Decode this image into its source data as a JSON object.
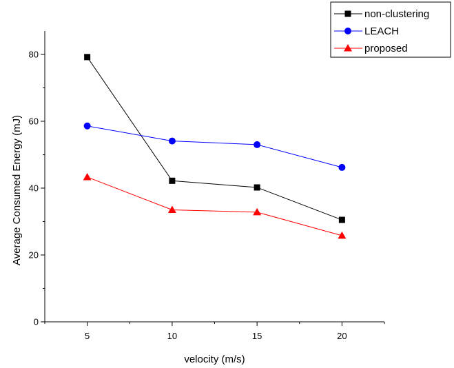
{
  "chart_data": {
    "type": "line",
    "xlabel": "velocity (m/s)",
    "ylabel": "Average Consumed Energy (mJ)",
    "x": [
      5,
      10,
      15,
      20
    ],
    "xlim": [
      2.5,
      22.5
    ],
    "ylim": [
      0,
      87
    ],
    "xticks": [
      5,
      10,
      15,
      20
    ],
    "yticks": [
      0,
      20,
      40,
      60,
      80
    ],
    "legend_position": "top-right",
    "grid": false,
    "series": [
      {
        "name": "non-clustering",
        "color": "#000000",
        "marker": "square",
        "values": [
          79.2,
          42.2,
          40.2,
          30.5
        ]
      },
      {
        "name": "LEACH",
        "color": "#0000ff",
        "marker": "circle",
        "values": [
          58.6,
          54.1,
          53.0,
          46.2
        ]
      },
      {
        "name": "proposed",
        "color": "#ff0000",
        "marker": "triangle",
        "values": [
          43.3,
          33.5,
          32.8,
          25.8
        ]
      }
    ]
  }
}
